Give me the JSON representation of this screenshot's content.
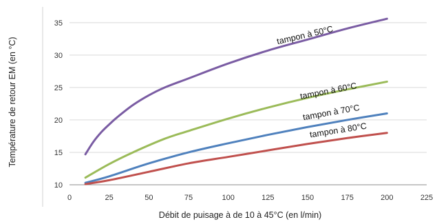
{
  "chart_data": {
    "type": "line",
    "title": "",
    "xlabel": "Débit de puisage à de 10 à 45°C (en l/min)",
    "ylabel": "Température de retour EM  (en °C)",
    "xlim": [
      0,
      225
    ],
    "ylim": [
      10,
      37
    ],
    "x_ticks": [
      "0",
      "25",
      "50",
      "75",
      "100",
      "125",
      "150",
      "175",
      "200",
      "225"
    ],
    "y_ticks": [
      "10",
      "15",
      "20",
      "25",
      "30",
      "35"
    ],
    "grid": "horizontal",
    "legend": "none (inline labels)",
    "series": [
      {
        "name": "tampon à 50°C",
        "color": "#7a5ca3",
        "x": [
          10,
          15,
          20,
          25,
          30,
          40,
          50,
          60,
          75,
          100,
          125,
          150,
          175,
          200
        ],
        "y": [
          14.7,
          16.6,
          18.1,
          19.3,
          20.4,
          22.3,
          23.8,
          25.0,
          26.4,
          28.7,
          30.7,
          32.4,
          34.1,
          35.6
        ]
      },
      {
        "name": "tampon à 60°C",
        "color": "#9bbb59",
        "x": [
          10,
          25,
          40,
          60,
          75,
          100,
          125,
          150,
          175,
          200
        ],
        "y": [
          11.1,
          13.2,
          15.0,
          17.1,
          18.3,
          20.2,
          21.9,
          23.4,
          24.7,
          25.9
        ]
      },
      {
        "name": "tampon à 70°C",
        "color": "#4f81bd",
        "x": [
          10,
          25,
          50,
          75,
          100,
          125,
          150,
          175,
          200
        ],
        "y": [
          10.3,
          11.3,
          13.3,
          15.0,
          16.4,
          17.7,
          18.9,
          20.0,
          21.0
        ]
      },
      {
        "name": "tampon à 80°C",
        "color": "#c0504d",
        "x": [
          10,
          25,
          50,
          75,
          100,
          125,
          150,
          175,
          200
        ],
        "y": [
          10.1,
          10.7,
          12.0,
          13.3,
          14.3,
          15.3,
          16.3,
          17.2,
          18.0
        ]
      }
    ]
  }
}
